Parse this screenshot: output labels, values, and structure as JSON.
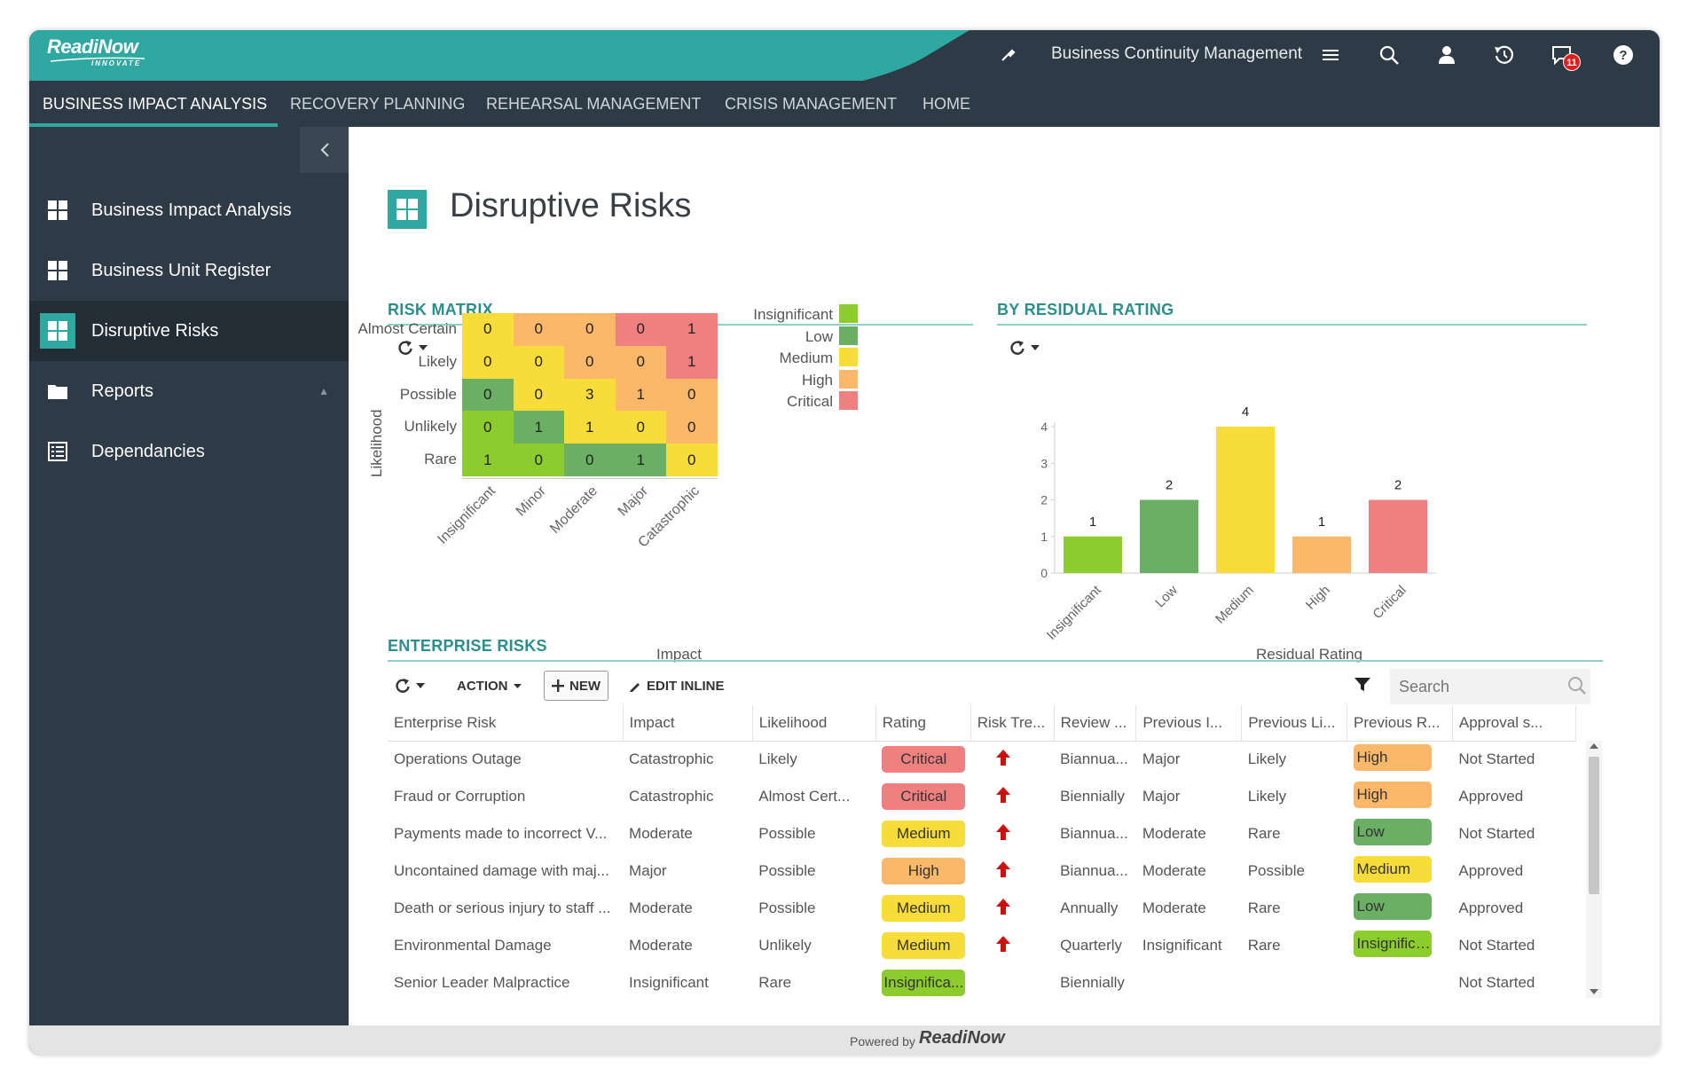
{
  "topbar": {
    "logo": "ReadiNow",
    "logo_sub": "INNOVATE",
    "app_name": "Business Continuity Management",
    "notification_count": "11",
    "teal": "#2fa8a2",
    "dark": "#2e3a45"
  },
  "nav": {
    "tabs": [
      {
        "label": "BUSINESS IMPACT ANALYSIS",
        "active": true
      },
      {
        "label": "RECOVERY PLANNING"
      },
      {
        "label": "REHEARSAL MANAGEMENT"
      },
      {
        "label": "CRISIS MANAGEMENT"
      },
      {
        "label": "HOME"
      }
    ]
  },
  "sidebar": {
    "items": [
      {
        "label": "Business Impact Analysis",
        "icon": "grid-icon"
      },
      {
        "label": "Business Unit Register",
        "icon": "grid-icon"
      },
      {
        "label": "Disruptive Risks",
        "icon": "grid-icon",
        "active": true
      },
      {
        "label": "Reports",
        "icon": "folder-icon"
      },
      {
        "label": "Dependancies",
        "icon": "list-icon"
      }
    ]
  },
  "page": {
    "title": "Disruptive Risks"
  },
  "risk_matrix": {
    "title": "RISK MATRIX",
    "x_title": "Impact",
    "y_title": "Likelihood",
    "legend_title": "",
    "legend": [
      {
        "label": "Insignificant",
        "color": "#8ccc2c"
      },
      {
        "label": "Low",
        "color": "#6aaf64"
      },
      {
        "label": "Medium",
        "color": "#f7dc3a"
      },
      {
        "label": "High",
        "color": "#fbb86a"
      },
      {
        "label": "Critical",
        "color": "#f08080"
      }
    ]
  },
  "residual": {
    "title": "BY RESIDUAL RATING",
    "x_title": "Residual Rating"
  },
  "chart_data": [
    {
      "type": "heatmap",
      "title": "RISK MATRIX",
      "xlabel": "Impact",
      "ylabel": "Likelihood",
      "x": [
        "Insignificant",
        "Minor",
        "Moderate",
        "Major",
        "Catastrophic"
      ],
      "y": [
        "Almost Certain",
        "Likely",
        "Possible",
        "Unlikely",
        "Rare"
      ],
      "values": [
        [
          0,
          0,
          0,
          0,
          1
        ],
        [
          0,
          0,
          0,
          0,
          1
        ],
        [
          0,
          0,
          3,
          1,
          0
        ],
        [
          0,
          1,
          1,
          0,
          0
        ],
        [
          1,
          0,
          0,
          1,
          0
        ]
      ],
      "cell_ratings": [
        [
          "Medium",
          "High",
          "High",
          "Critical",
          "Critical"
        ],
        [
          "Medium",
          "Medium",
          "High",
          "High",
          "Critical"
        ],
        [
          "Low",
          "Medium",
          "Medium",
          "High",
          "High"
        ],
        [
          "Insignificant",
          "Low",
          "Medium",
          "Medium",
          "High"
        ],
        [
          "Insignificant",
          "Insignificant",
          "Low",
          "Low",
          "Medium"
        ]
      ]
    },
    {
      "type": "bar",
      "title": "BY RESIDUAL RATING",
      "xlabel": "Residual Rating",
      "ylabel": "",
      "categories": [
        "Insignificant",
        "Low",
        "Medium",
        "High",
        "Critical"
      ],
      "values": [
        1,
        2,
        4,
        1,
        2
      ],
      "colors": [
        "#8ccc2c",
        "#6aaf64",
        "#f7dc3a",
        "#fbb86a",
        "#f08080"
      ],
      "ylim": [
        0,
        4
      ],
      "yticks": [
        0,
        1,
        2,
        3,
        4
      ]
    }
  ],
  "enterprise": {
    "title": "ENTERPRISE RISKS",
    "toolbar": {
      "action_label": "ACTION",
      "new_label": "NEW",
      "edit_inline_label": "EDIT INLINE",
      "search_placeholder": "Search"
    },
    "columns": [
      "Enterprise Risk",
      "Impact",
      "Likelihood",
      "Rating",
      "Risk Tre...",
      "Review ...",
      "Previous I...",
      "Previous Li...",
      "Previous R...",
      "Approval s..."
    ],
    "rows": [
      {
        "risk": "Operations Outage",
        "impact": "Catastrophic",
        "likelihood": "Likely",
        "rating": "Critical",
        "review": "Biannua...",
        "prev_impact": "Major",
        "prev_likelihood": "Likely",
        "prev_rating": "High",
        "approval": "Not Started"
      },
      {
        "risk": "Fraud or Corruption",
        "impact": "Catastrophic",
        "likelihood": "Almost Cert...",
        "rating": "Critical",
        "review": "Biennially",
        "prev_impact": "Major",
        "prev_likelihood": "Likely",
        "prev_rating": "High",
        "approval": "Approved"
      },
      {
        "risk": "Payments made to incorrect V...",
        "impact": "Moderate",
        "likelihood": "Possible",
        "rating": "Medium",
        "review": "Biannua...",
        "prev_impact": "Moderate",
        "prev_likelihood": "Rare",
        "prev_rating": "Low",
        "approval": "Not Started"
      },
      {
        "risk": "Uncontained damage with maj...",
        "impact": "Major",
        "likelihood": "Possible",
        "rating": "High",
        "review": "Biannua...",
        "prev_impact": "Moderate",
        "prev_likelihood": "Possible",
        "prev_rating": "Medium",
        "approval": "Approved"
      },
      {
        "risk": "Death or serious injury to staff ...",
        "impact": "Moderate",
        "likelihood": "Possible",
        "rating": "Medium",
        "review": "Annually",
        "prev_impact": "Moderate",
        "prev_likelihood": "Rare",
        "prev_rating": "Low",
        "approval": "Approved"
      },
      {
        "risk": "Environmental Damage",
        "impact": "Moderate",
        "likelihood": "Unlikely",
        "rating": "Medium",
        "review": "Quarterly",
        "prev_impact": "Insignificant",
        "prev_likelihood": "Rare",
        "prev_rating": "Insignificant",
        "approval": "Not Started"
      },
      {
        "risk": "Senior Leader Malpractice",
        "impact": "Insignificant",
        "likelihood": "Rare",
        "rating": "Insignifica...",
        "review": "Biennially",
        "prev_impact": "",
        "prev_likelihood": "",
        "prev_rating": "",
        "approval": "Not Started"
      }
    ]
  },
  "footer": {
    "text": "Powered by",
    "logo": "ReadiNow"
  }
}
